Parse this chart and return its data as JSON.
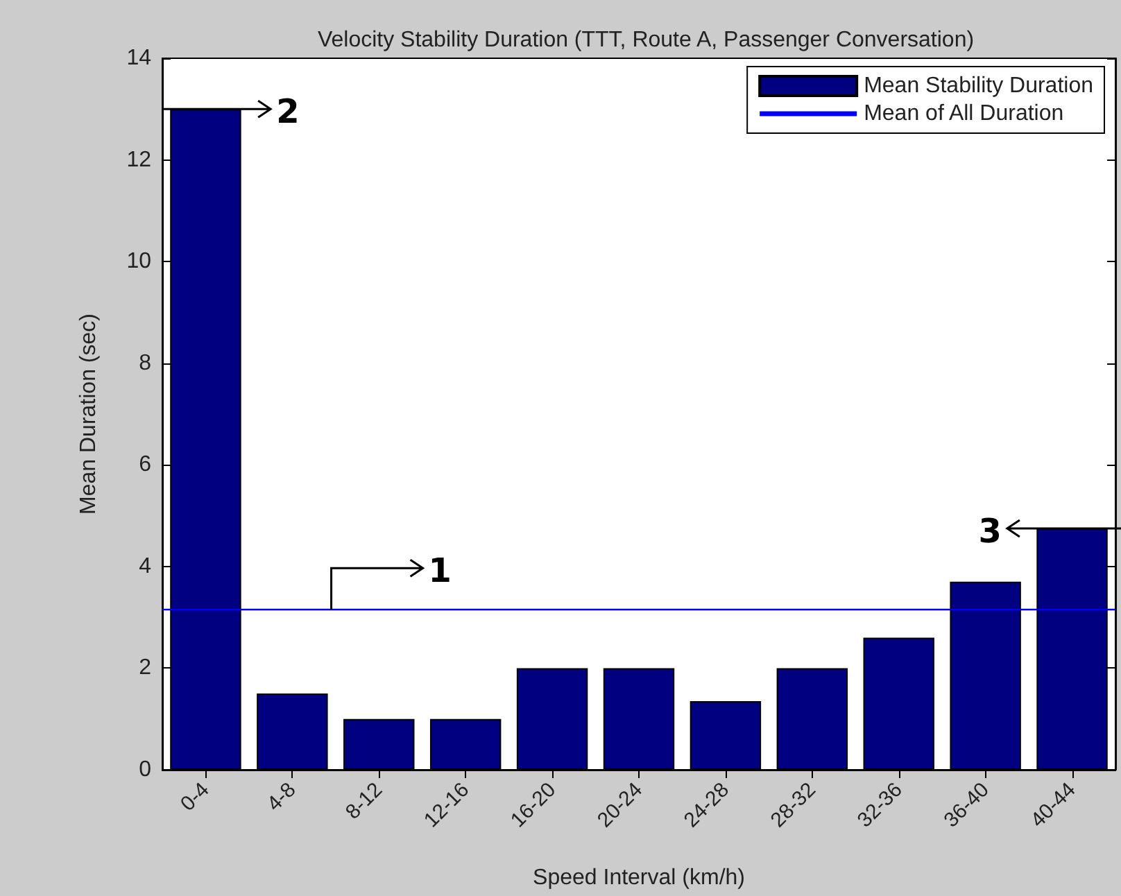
{
  "chart_data": {
    "type": "bar",
    "title": "Velocity Stability Duration (TTT, Route A, Passenger Conversation)",
    "xlabel": "Speed Interval (km/h)",
    "ylabel": "Mean Duration (sec)",
    "categories": [
      "0-4",
      "4-8",
      "8-12",
      "12-16",
      "16-20",
      "20-24",
      "24-28",
      "28-32",
      "32-36",
      "36-40",
      "40-44"
    ],
    "series": [
      {
        "name": "Mean Stability Duration",
        "color": "#000080",
        "values": [
          13,
          1.5,
          1,
          1,
          2,
          2,
          1.35,
          2,
          2.6,
          3.7,
          4.75
        ]
      }
    ],
    "ref_lines": [
      {
        "axis": "y",
        "value": 3.15,
        "label": "Mean of All Duration",
        "color": "#0000ff",
        "line_style": "solid"
      }
    ],
    "annotations": [
      {
        "text": "1",
        "y": 3.15
      },
      {
        "text": "2",
        "x": "0-4",
        "y": 13
      },
      {
        "text": "3",
        "x": "40-44",
        "y": 4.75
      }
    ],
    "ylim": [
      0,
      14
    ],
    "yticks": [
      0,
      2,
      4,
      6,
      8,
      10,
      12,
      14
    ],
    "grid": false,
    "legend": "top right"
  }
}
